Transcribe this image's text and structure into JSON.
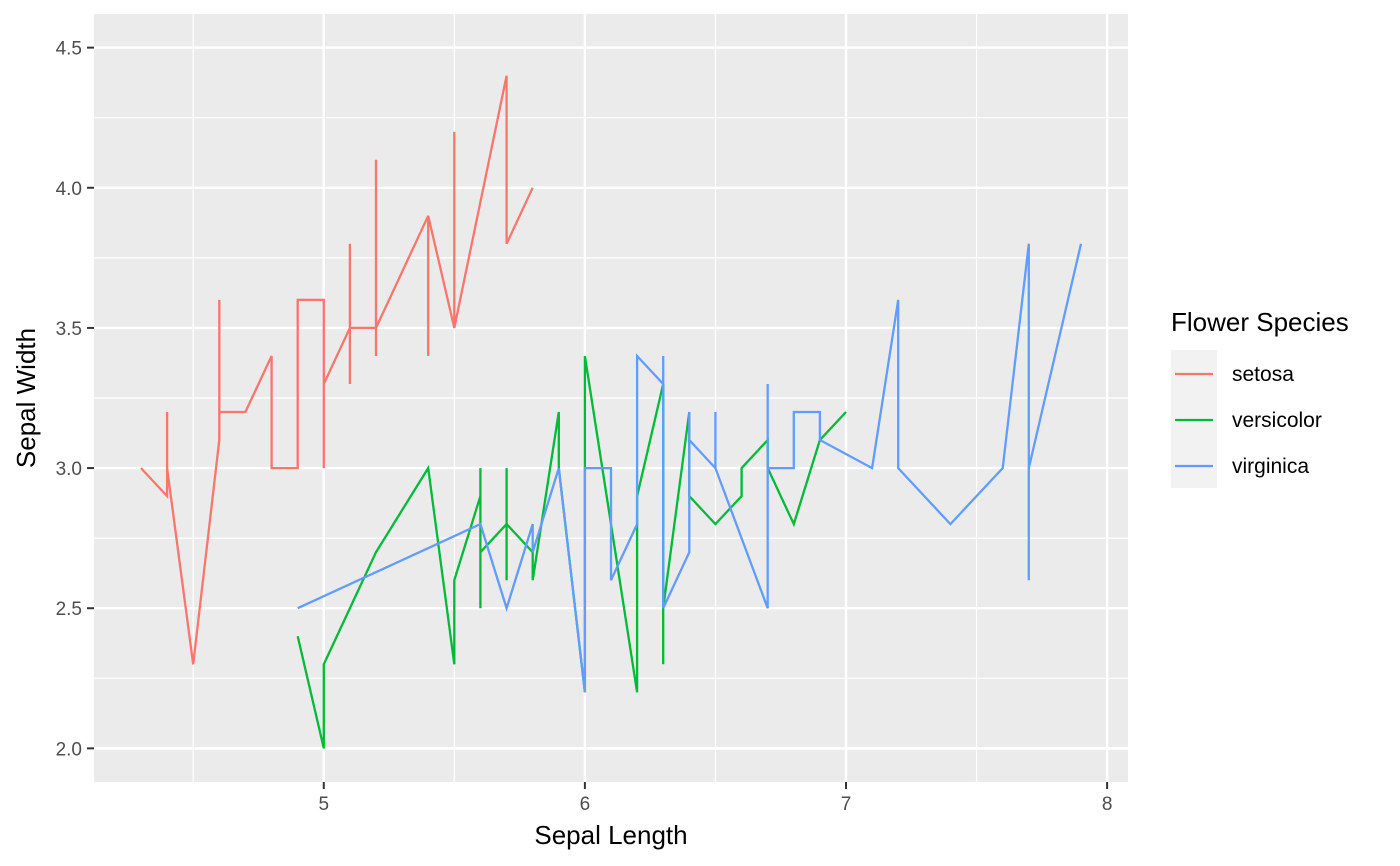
{
  "chart_data": {
    "type": "line",
    "title": "",
    "xlabel": "Sepal Length",
    "ylabel": "Sepal Width",
    "xlim": [
      4.12,
      8.08
    ],
    "ylim": [
      1.88,
      4.62
    ],
    "x_ticks": [
      5,
      6,
      7,
      8
    ],
    "x_tick_labels": [
      "5",
      "6",
      "7",
      "8"
    ],
    "y_ticks": [
      2.0,
      2.5,
      3.0,
      3.5,
      4.0,
      4.5
    ],
    "y_tick_labels": [
      "2.0",
      "2.5",
      "3.0",
      "3.5",
      "4.0",
      "4.5"
    ],
    "grid": true,
    "legend": {
      "title": "Flower Species",
      "position": "right"
    },
    "series": [
      {
        "name": "setosa",
        "color": "#F8766D",
        "points": [
          [
            4.3,
            3.0
          ],
          [
            4.4,
            2.9
          ],
          [
            4.4,
            3.2
          ],
          [
            4.4,
            3.0
          ],
          [
            4.5,
            2.3
          ],
          [
            4.6,
            3.1
          ],
          [
            4.6,
            3.6
          ],
          [
            4.6,
            3.4
          ],
          [
            4.6,
            3.2
          ],
          [
            4.7,
            3.2
          ],
          [
            4.8,
            3.4
          ],
          [
            4.8,
            3.0
          ],
          [
            4.9,
            3.0
          ],
          [
            4.9,
            3.6
          ],
          [
            5.0,
            3.6
          ],
          [
            5.0,
            3.0
          ],
          [
            5.0,
            3.3
          ],
          [
            5.1,
            3.5
          ],
          [
            5.1,
            3.8
          ],
          [
            5.1,
            3.3
          ],
          [
            5.1,
            3.5
          ],
          [
            5.2,
            3.5
          ],
          [
            5.2,
            4.1
          ],
          [
            5.2,
            3.4
          ],
          [
            5.2,
            3.5
          ],
          [
            5.3,
            3.7
          ],
          [
            5.4,
            3.9
          ],
          [
            5.4,
            3.4
          ],
          [
            5.4,
            3.9
          ],
          [
            5.5,
            3.5
          ],
          [
            5.5,
            4.2
          ],
          [
            5.5,
            3.5
          ],
          [
            5.7,
            4.4
          ],
          [
            5.7,
            3.8
          ],
          [
            5.8,
            4.0
          ]
        ]
      },
      {
        "name": "versicolor",
        "color": "#00BA38",
        "points": [
          [
            4.9,
            2.4
          ],
          [
            5.0,
            2.0
          ],
          [
            5.0,
            2.3
          ],
          [
            5.2,
            2.7
          ],
          [
            5.4,
            3.0
          ],
          [
            5.5,
            2.3
          ],
          [
            5.5,
            2.6
          ],
          [
            5.6,
            2.9
          ],
          [
            5.6,
            2.5
          ],
          [
            5.6,
            3.0
          ],
          [
            5.6,
            2.7
          ],
          [
            5.7,
            2.8
          ],
          [
            5.7,
            2.6
          ],
          [
            5.7,
            3.0
          ],
          [
            5.7,
            2.8
          ],
          [
            5.8,
            2.7
          ],
          [
            5.8,
            2.6
          ],
          [
            5.9,
            3.2
          ],
          [
            5.9,
            3.0
          ],
          [
            6.0,
            2.2
          ],
          [
            6.0,
            3.4
          ],
          [
            6.2,
            2.2
          ],
          [
            6.2,
            2.9
          ],
          [
            6.3,
            3.3
          ],
          [
            6.3,
            2.3
          ],
          [
            6.3,
            2.5
          ],
          [
            6.4,
            3.2
          ],
          [
            6.4,
            2.9
          ],
          [
            6.5,
            2.8
          ],
          [
            6.6,
            2.9
          ],
          [
            6.6,
            3.0
          ],
          [
            6.7,
            3.1
          ],
          [
            6.7,
            3.0
          ],
          [
            6.8,
            2.8
          ],
          [
            6.9,
            3.1
          ],
          [
            7.0,
            3.2
          ]
        ]
      },
      {
        "name": "virginica",
        "color": "#619CFF",
        "points": [
          [
            4.9,
            2.5
          ],
          [
            5.6,
            2.8
          ],
          [
            5.7,
            2.5
          ],
          [
            5.8,
            2.8
          ],
          [
            5.8,
            2.7
          ],
          [
            5.9,
            3.0
          ],
          [
            6.0,
            2.2
          ],
          [
            6.0,
            3.0
          ],
          [
            6.1,
            3.0
          ],
          [
            6.1,
            2.6
          ],
          [
            6.2,
            2.8
          ],
          [
            6.2,
            3.4
          ],
          [
            6.3,
            3.3
          ],
          [
            6.3,
            3.4
          ],
          [
            6.3,
            2.5
          ],
          [
            6.4,
            2.7
          ],
          [
            6.4,
            3.2
          ],
          [
            6.4,
            3.1
          ],
          [
            6.5,
            3.0
          ],
          [
            6.5,
            3.2
          ],
          [
            6.5,
            3.0
          ],
          [
            6.7,
            2.5
          ],
          [
            6.7,
            3.3
          ],
          [
            6.7,
            3.0
          ],
          [
            6.8,
            3.0
          ],
          [
            6.8,
            3.2
          ],
          [
            6.9,
            3.2
          ],
          [
            6.9,
            3.1
          ],
          [
            7.1,
            3.0
          ],
          [
            7.2,
            3.6
          ],
          [
            7.2,
            3.0
          ],
          [
            7.4,
            2.8
          ],
          [
            7.6,
            3.0
          ],
          [
            7.7,
            3.8
          ],
          [
            7.7,
            2.6
          ],
          [
            7.7,
            3.0
          ],
          [
            7.9,
            3.8
          ]
        ]
      }
    ]
  }
}
